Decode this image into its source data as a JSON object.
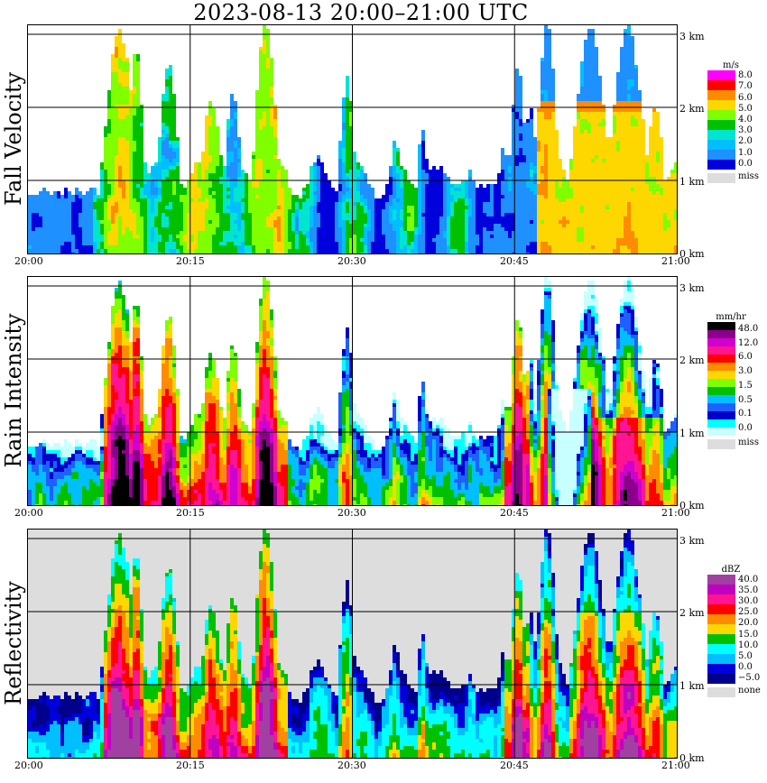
{
  "title": "2023-08-13   20:00–21:00 UTC",
  "chart_data": [
    {
      "type": "heatmap",
      "name": "Fall Velocity",
      "ylabel": "Fall Velocity",
      "x_ticks": [
        "20:00",
        "20:15",
        "20:30",
        "20:45",
        "21:00"
      ],
      "y_ticks": [
        "0 km",
        "1 km",
        "2 km",
        "3 km"
      ],
      "xlim": [
        "20:00",
        "21:00"
      ],
      "ylim_km": [
        0,
        3.2
      ],
      "grid": true,
      "legend": {
        "unit": "m/s",
        "levels": [
          "8.0",
          "7.0",
          "6.0",
          "5.0",
          "4.0",
          "3.0",
          "2.0",
          "1.0",
          "0.0"
        ],
        "colors": [
          "#ff00ff",
          "#ff0000",
          "#ff8c00",
          "#ffd700",
          "#7fff00",
          "#00c000",
          "#00e5d0",
          "#00bfff",
          "#1e90ff",
          "#0000dd"
        ],
        "missing_label": "miss",
        "missing_color": "#dddddd"
      }
    },
    {
      "type": "heatmap",
      "name": "Rain Intensity",
      "ylabel": "Rain Intensity",
      "x_ticks": [
        "20:00",
        "20:15",
        "20:30",
        "20:45",
        "21:00"
      ],
      "y_ticks": [
        "0 km",
        "1 km",
        "2 km",
        "3 km"
      ],
      "xlim": [
        "20:00",
        "21:00"
      ],
      "ylim_km": [
        0,
        3.2
      ],
      "grid": true,
      "legend": {
        "unit": "mm/hr",
        "levels": [
          "48.0",
          "12.0",
          "6.0",
          "3.0",
          "1.5",
          "0.5",
          "0.1",
          "0.0"
        ],
        "colors": [
          "#000000",
          "#8b008b",
          "#d000d0",
          "#ff1493",
          "#ff0000",
          "#ff8c00",
          "#ffd700",
          "#7fff00",
          "#00c000",
          "#00bfff",
          "#1e60ff",
          "#0000cc",
          "#00ffff",
          "#c8ffff"
        ],
        "missing_label": "miss",
        "missing_color": "#dddddd"
      }
    },
    {
      "type": "heatmap",
      "name": "Reflectivity",
      "ylabel": "Reflectivity",
      "x_ticks": [
        "20:00",
        "20:15",
        "20:30",
        "20:45",
        "21:00"
      ],
      "y_ticks": [
        "0 km",
        "1 km",
        "2 km",
        "3 km"
      ],
      "xlim": [
        "20:00",
        "21:00"
      ],
      "ylim_km": [
        0,
        3.2
      ],
      "grid": true,
      "legend": {
        "unit": "dBZ",
        "levels": [
          "40.0",
          "35.0",
          "30.0",
          "25.0",
          "20.0",
          "15.0",
          "10.0",
          "5.0",
          "0.0",
          "−5.0"
        ],
        "colors": [
          "#a040a0",
          "#c000c0",
          "#ff1493",
          "#ff0000",
          "#ff8c00",
          "#ffd700",
          "#00c000",
          "#00ffff",
          "#00bfff",
          "#0000dd",
          "#00008b"
        ],
        "missing_label": "none",
        "missing_color": "#dddddd"
      }
    }
  ],
  "colors": {
    "missing": "#dddddd",
    "grid": "#000000"
  }
}
